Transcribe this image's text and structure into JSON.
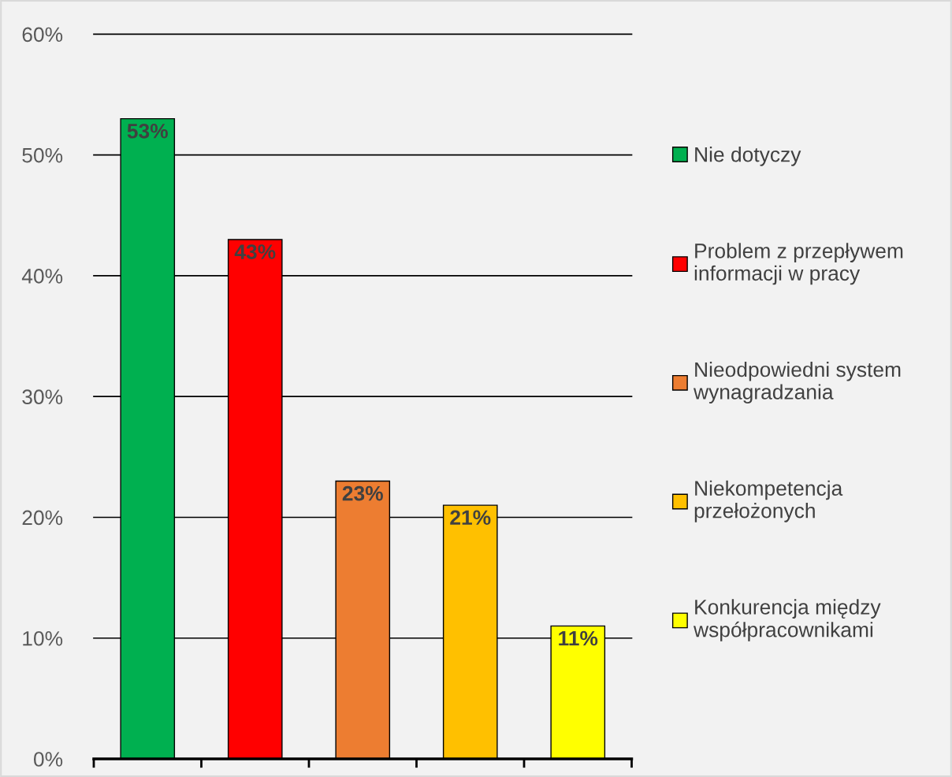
{
  "chart_data": {
    "type": "bar",
    "categories": [
      null,
      null,
      null,
      null,
      null
    ],
    "series": [
      {
        "name": "Nie dotyczy",
        "color": "#00b050",
        "values": [
          53,
          null,
          null,
          null,
          null
        ]
      },
      {
        "name": "Problem z przepływem\ninformacji w pracy",
        "color": "#ff0000",
        "values": [
          null,
          43,
          null,
          null,
          null
        ]
      },
      {
        "name": "Nieodpowiedni system\nwynagradzania",
        "color": "#ed7d31",
        "values": [
          null,
          null,
          23,
          null,
          null
        ]
      },
      {
        "name": "Niekompetencja\nprzełożonych",
        "color": "#ffc000",
        "values": [
          null,
          null,
          null,
          21,
          null
        ]
      },
      {
        "name": "Konkurencja między\nwspółpracownikami",
        "color": "#ffff00",
        "values": [
          null,
          null,
          null,
          null,
          11
        ]
      }
    ],
    "ylim": [
      0,
      60
    ],
    "yticks": [
      {
        "value": 0,
        "label": "0%"
      },
      {
        "value": 10,
        "label": "10%"
      },
      {
        "value": 20,
        "label": "20%"
      },
      {
        "value": 30,
        "label": "30%"
      },
      {
        "value": 40,
        "label": "40%"
      },
      {
        "value": 50,
        "label": "50%"
      },
      {
        "value": 60,
        "label": "60%"
      }
    ],
    "grid": "y",
    "legend": "right",
    "value_labels": [
      "53%",
      "43%",
      "23%",
      "21%",
      "11%"
    ]
  }
}
